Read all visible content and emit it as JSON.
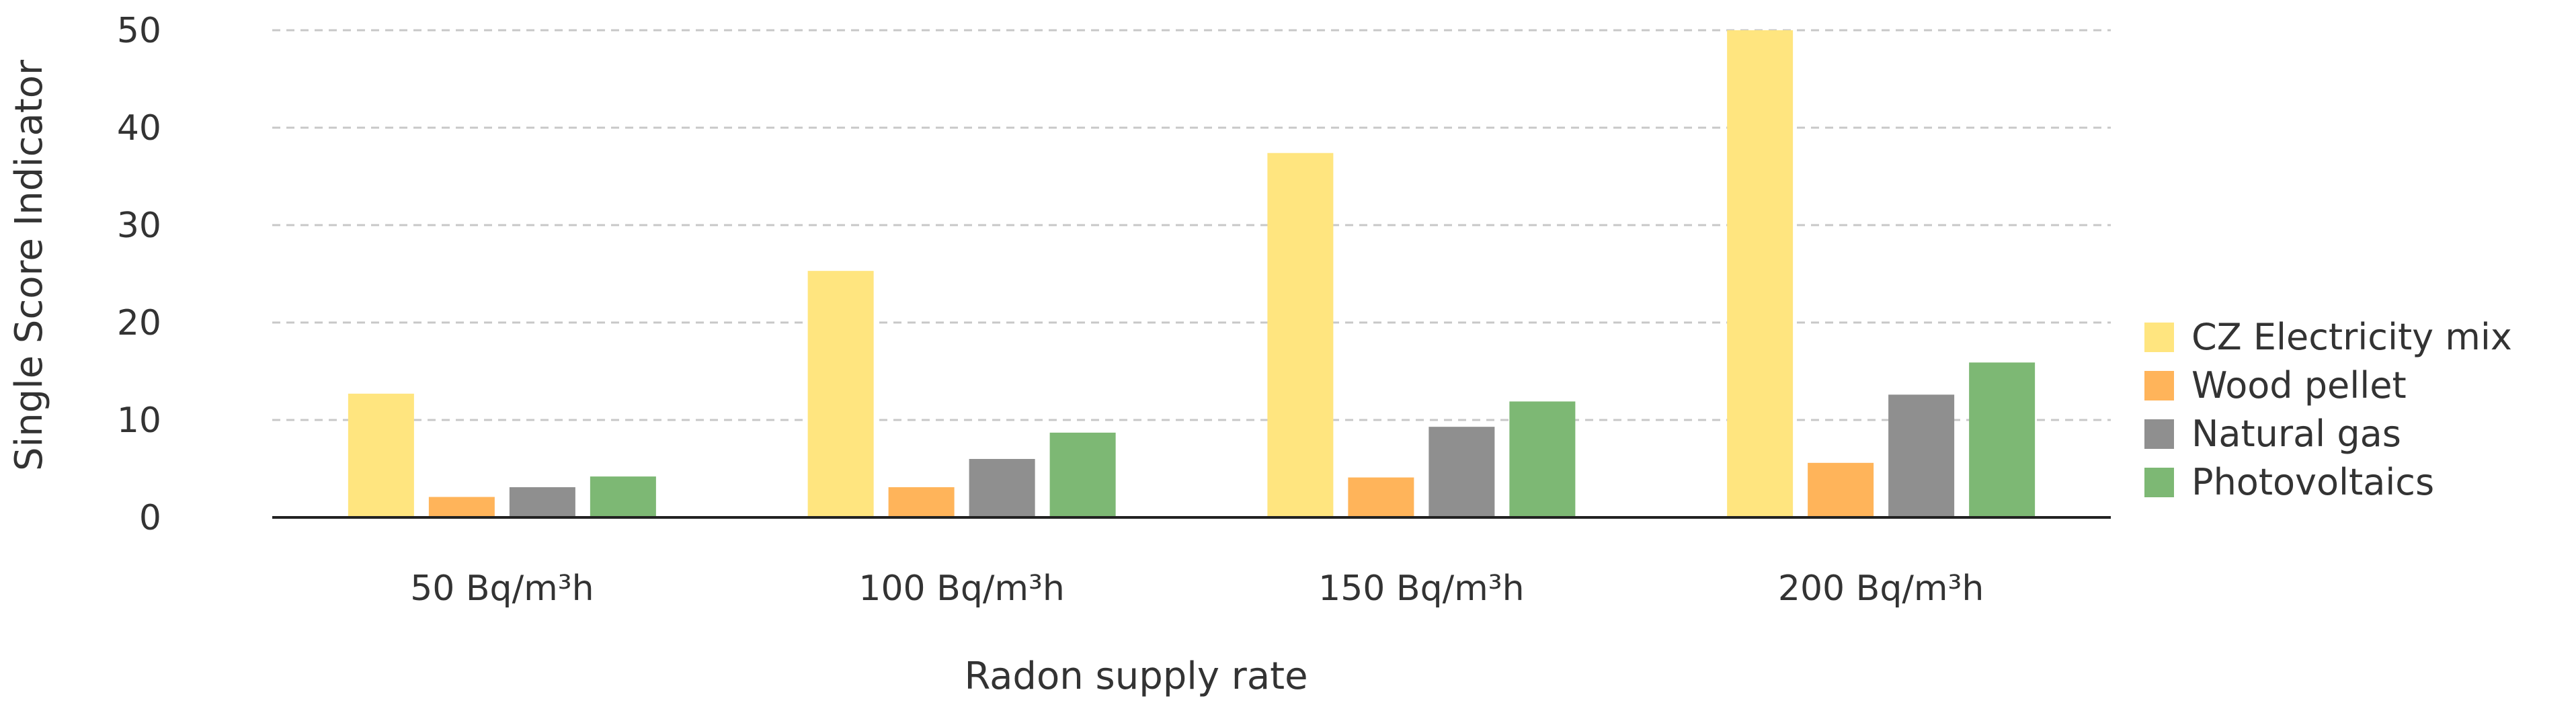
{
  "chart_data": {
    "type": "bar",
    "title": "",
    "xlabel": "Radon supply rate",
    "ylabel": "Single Score Indicator",
    "categories": [
      "50 Bq/m³h",
      "100 Bq/m³h",
      "150 Bq/m³h",
      "200 Bq/m³h"
    ],
    "ylim": [
      0,
      50
    ],
    "yticks": [
      "0",
      "10",
      "20",
      "30",
      "40",
      "50"
    ],
    "grid": true,
    "legend_position": "right",
    "series": [
      {
        "name": "CZ Electricity mix",
        "color": "#FFE57F",
        "values": [
          12.7,
          25.3,
          37.4,
          50.0
        ]
      },
      {
        "name": "Wood pellet",
        "color": "#FFB45A",
        "values": [
          2.1,
          3.1,
          4.1,
          5.6
        ]
      },
      {
        "name": "Natural gas",
        "color": "#8F8F8F",
        "values": [
          3.1,
          6.0,
          9.3,
          12.6
        ]
      },
      {
        "name": "Photovoltaics",
        "color": "#7DB874",
        "values": [
          4.2,
          8.7,
          11.9,
          15.9
        ]
      }
    ]
  }
}
